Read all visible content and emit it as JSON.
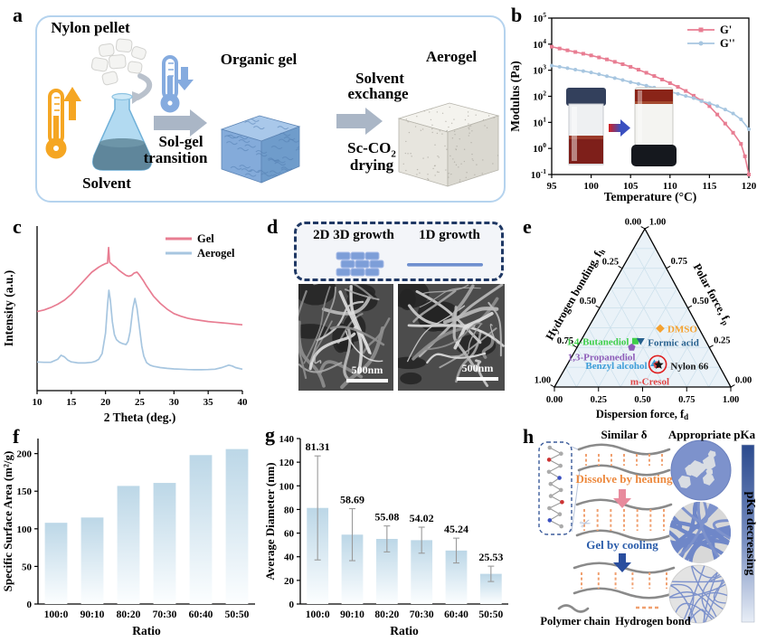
{
  "figure": {
    "panel_letters": {
      "a": "a",
      "b": "b",
      "c": "c",
      "d": "d",
      "e": "e",
      "f": "f",
      "g": "g",
      "h": "h"
    }
  },
  "panel_a": {
    "nylon_pellet": "Nylon pellet",
    "solvent": "Solvent",
    "sol_gel_1": "Sol-gel",
    "sol_gel_2": "transition",
    "organic_gel": "Organic gel",
    "solvent_exchange_1": "Solvent",
    "solvent_exchange_2": "exchange",
    "sc_co2_base": "Sc-CO",
    "sc_co2_sub": "2",
    "sc_co2_drying": "drying",
    "aerogel": "Aerogel"
  },
  "panel_d": {
    "growth_2d3d": "2D 3D growth",
    "growth_1d": "1D growth",
    "scalebar": "500nm"
  },
  "panel_h": {
    "similar_delta": "Similar δ",
    "appropriate_pka": "Appropriate pKa",
    "dissolve": "Dissolve by heating",
    "gel_cooling": "Gel by cooling",
    "polymer_chain": "Polymer chain",
    "hydrogen_bond": "Hydrogen bond",
    "pka_decreasing": "pKa decreasing",
    "scissors_icon": "✂"
  },
  "colors": {
    "g_prime": "#e87d92",
    "g_double_prime": "#a7c6e0",
    "gel_curve": "#e87d92",
    "aerogel_curve": "#a7c6e0",
    "bar_top": "#bcd7e7",
    "bar_bottom": "#fcfeff",
    "error_bar": "#9a9a9a",
    "ternary_fill": "#eaf2f8",
    "ternary_grid": "#cadfeb",
    "panel_a_border": "#b5d3ee",
    "dashed_box": "#1f3864",
    "arrow_gray": "#aab6c6",
    "thermo_hot": "#f5a623",
    "thermo_cold": "#85abdf",
    "colorbar_top": "#2b4a8e",
    "colorbar_bottom": "#e8eef6",
    "orange_text": "#ed8a3f",
    "blue_text": "#2a5caa",
    "hbond_orange": "#f0a070",
    "chain_gray": "#8a8a8a",
    "network_blue": "#7d92cc"
  },
  "chart_data": [
    {
      "panel": "b",
      "type": "line",
      "xlabel": "Temperature (°C)",
      "ylabel": "Modulus (Pa)",
      "xlim": [
        95,
        120
      ],
      "xticks": [
        95,
        100,
        105,
        110,
        115,
        120
      ],
      "yscale": "log",
      "ytick_exponents": [
        -1,
        0,
        1,
        2,
        3,
        4,
        5
      ],
      "legend_position": "top-right",
      "series": [
        {
          "name": "G'",
          "color": "#e87d92",
          "marker": "square",
          "x": [
            95,
            96,
            97,
            98,
            99,
            100,
            101,
            102,
            103,
            104,
            105,
            106,
            107,
            108,
            109,
            110,
            111,
            112,
            113,
            114,
            115,
            116,
            117,
            118,
            119,
            119.5,
            120
          ],
          "y": [
            8000,
            6800,
            5800,
            5000,
            4300,
            3700,
            3100,
            2600,
            2100,
            1700,
            1350,
            1050,
            800,
            600,
            440,
            320,
            230,
            160,
            105,
            68,
            42,
            20,
            9,
            4,
            1.5,
            0.5,
            0.1
          ]
        },
        {
          "name": "G''",
          "color": "#a7c6e0",
          "marker": "circle",
          "x": [
            95,
            96,
            97,
            98,
            99,
            100,
            101,
            102,
            103,
            104,
            105,
            106,
            107,
            108,
            109,
            110,
            111,
            112,
            113,
            114,
            115,
            116,
            117,
            118,
            119,
            120
          ],
          "y": [
            1500,
            1350,
            1200,
            1050,
            930,
            820,
            700,
            590,
            500,
            420,
            350,
            300,
            255,
            215,
            180,
            150,
            125,
            103,
            85,
            65,
            54,
            42,
            31,
            22,
            13,
            5.5
          ]
        }
      ]
    },
    {
      "panel": "c",
      "type": "line",
      "xlabel": "2 Theta (deg.)",
      "ylabel": "Intensity (a.u.)",
      "xlim": [
        10,
        40
      ],
      "xticks": [
        10,
        15,
        20,
        25,
        30,
        35,
        40
      ],
      "ylim": [
        0,
        1
      ],
      "series": [
        {
          "name": "Gel",
          "color": "#e87d92",
          "x": [
            10,
            11,
            12,
            13,
            14,
            15,
            16,
            17,
            18,
            19,
            19.5,
            20,
            20.3,
            20.45,
            20.6,
            21,
            21.5,
            22,
            22.5,
            23,
            23.4,
            23.8,
            24.2,
            24.6,
            25,
            25.5,
            26,
            27,
            28,
            29,
            30,
            31,
            32,
            33,
            34,
            35,
            36,
            37,
            38,
            39,
            40
          ],
          "y": [
            0.48,
            0.49,
            0.505,
            0.525,
            0.55,
            0.585,
            0.63,
            0.675,
            0.72,
            0.75,
            0.762,
            0.772,
            0.775,
            0.87,
            0.78,
            0.765,
            0.75,
            0.73,
            0.715,
            0.7,
            0.695,
            0.7,
            0.715,
            0.72,
            0.7,
            0.67,
            0.635,
            0.575,
            0.53,
            0.495,
            0.468,
            0.452,
            0.44,
            0.432,
            0.426,
            0.42,
            0.416,
            0.412,
            0.408,
            0.404,
            0.4
          ]
        },
        {
          "name": "Aerogel",
          "color": "#a7c6e0",
          "x": [
            10,
            11,
            12,
            13,
            13.5,
            14,
            14.5,
            15,
            16,
            17,
            18,
            18.5,
            19,
            19.5,
            20,
            20.3,
            20.5,
            20.7,
            21,
            21.3,
            21.6,
            22,
            22.5,
            23,
            23.3,
            23.6,
            24,
            24.3,
            24.6,
            25,
            25.3,
            25.6,
            26,
            26.5,
            27,
            28,
            29,
            30,
            31,
            32,
            33,
            34,
            35,
            36,
            37,
            38,
            38.5,
            39,
            40
          ],
          "y": [
            0.174,
            0.172,
            0.172,
            0.19,
            0.215,
            0.205,
            0.185,
            0.175,
            0.168,
            0.168,
            0.172,
            0.178,
            0.19,
            0.225,
            0.35,
            0.52,
            0.61,
            0.55,
            0.42,
            0.34,
            0.31,
            0.295,
            0.285,
            0.28,
            0.3,
            0.36,
            0.5,
            0.56,
            0.5,
            0.37,
            0.27,
            0.21,
            0.17,
            0.155,
            0.148,
            0.14,
            0.135,
            0.132,
            0.13,
            0.128,
            0.127,
            0.127,
            0.128,
            0.13,
            0.14,
            0.155,
            0.15,
            0.14,
            0.13
          ]
        }
      ]
    },
    {
      "panel": "e",
      "type": "scatter",
      "subtype": "ternary",
      "axis_bottom": {
        "text": "Dispersion force, f",
        "sub": "d"
      },
      "axis_left": {
        "text": "Hydrogen bonding, f",
        "sub": "h"
      },
      "axis_right": {
        "text": "Polar force, f",
        "sub": "p"
      },
      "tick_labels": [
        "0.00",
        "0.25",
        "0.50",
        "0.75",
        "1.00"
      ],
      "grid_step": 0.125,
      "points": [
        {
          "label": "1,4-Butanediol",
          "fd": 0.31,
          "fp": 0.29,
          "fh": 0.4,
          "color": "#3ecf49",
          "marker": "square"
        },
        {
          "label": "DMSO",
          "fd": 0.41,
          "fp": 0.37,
          "fh": 0.22,
          "color": "#f5a230",
          "marker": "diamond"
        },
        {
          "label": "Formic acid",
          "fd": 0.34,
          "fp": 0.29,
          "fh": 0.37,
          "color": "#26608e",
          "marker": "triangle-down"
        },
        {
          "label": "1,3-Propanediol",
          "fd": 0.31,
          "fp": 0.25,
          "fh": 0.44,
          "color": "#8d5cb8",
          "marker": "pentagon"
        },
        {
          "label": "Benzyl alcohol",
          "fd": 0.49,
          "fp": 0.15,
          "fh": 0.36,
          "color": "#3e9ed9",
          "marker": "triangle-up"
        },
        {
          "label": "m-Cresol",
          "fd": 0.51,
          "fp": 0.14,
          "fh": 0.35,
          "color": "#e04444",
          "marker": "pentagon"
        },
        {
          "label": "Nylon 66",
          "fd": 0.52,
          "fp": 0.14,
          "fh": 0.34,
          "color": "#141414",
          "marker": "star"
        }
      ],
      "annotation_circle": {
        "around": [
          "Benzyl alcohol",
          "m-Cresol",
          "Nylon 66"
        ],
        "color": "#e02020"
      }
    },
    {
      "panel": "f",
      "type": "bar",
      "xlabel": "Ratio",
      "ylabel": "Specific Surface Area (m²/g)",
      "categories": [
        "100:0",
        "90:10",
        "80:20",
        "70:30",
        "60:40",
        "50:50"
      ],
      "values": [
        108,
        115,
        157,
        161,
        198,
        206
      ],
      "ylim": [
        0,
        220
      ],
      "yticks": [
        0,
        50,
        100,
        150,
        200
      ]
    },
    {
      "panel": "g",
      "type": "bar",
      "xlabel": "Ratio",
      "ylabel": "Average Diameter (nm)",
      "categories": [
        "100:0",
        "90:10",
        "80:20",
        "70:30",
        "60:40",
        "50:50"
      ],
      "values": [
        81.31,
        58.69,
        55.08,
        54.02,
        45.24,
        25.53
      ],
      "errors": [
        44,
        22,
        11,
        11,
        10.5,
        6.5
      ],
      "value_labels": [
        "81.31",
        "58.69",
        "55.08",
        "54.02",
        "45.24",
        "25.53"
      ],
      "ylim": [
        0,
        140
      ],
      "yticks": [
        0,
        20,
        40,
        60,
        80,
        100,
        120,
        140
      ]
    }
  ]
}
